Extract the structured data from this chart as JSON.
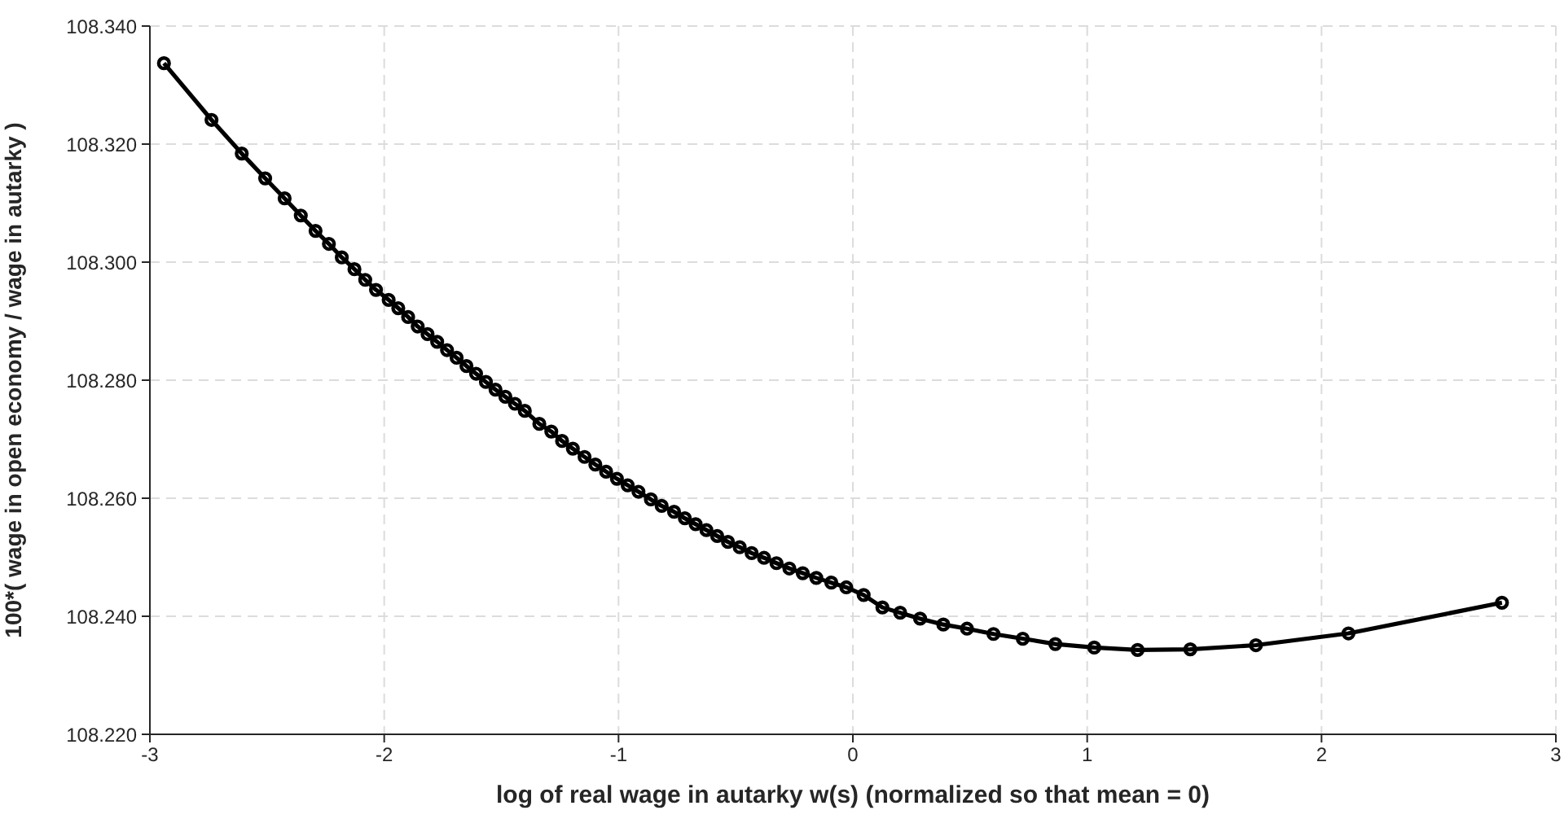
{
  "chart_data": {
    "type": "line",
    "xlabel": "log of real wage in autarky w(s) (normalized so that mean = 0)",
    "ylabel": "100*( wage in open economy / wage in autarky )",
    "xlim": [
      -3,
      3
    ],
    "xticks": [
      -3,
      -2,
      -1,
      0,
      1,
      2,
      3
    ],
    "ylim": [
      108.22,
      108.34
    ],
    "yticks": [
      {
        "value": 108.22,
        "label": "108.220"
      },
      {
        "value": 108.24,
        "label": "108.240"
      },
      {
        "value": 108.26,
        "label": "108.260"
      },
      {
        "value": 108.28,
        "label": "108.280"
      },
      {
        "value": 108.3,
        "label": "108.300"
      },
      {
        "value": 108.32,
        "label": "108.320"
      },
      {
        "value": 108.34,
        "label": "108.340"
      }
    ],
    "grid": true,
    "marker": "circle",
    "line_style": "solid",
    "series": [
      {
        "color": "#000000",
        "x": [
          -2.94,
          -2.737,
          -2.608,
          -2.508,
          -2.425,
          -2.356,
          -2.293,
          -2.236,
          -2.181,
          -2.127,
          -2.081,
          -2.035,
          -1.981,
          -1.94,
          -1.898,
          -1.857,
          -1.815,
          -1.774,
          -1.732,
          -1.691,
          -1.649,
          -1.608,
          -1.566,
          -1.525,
          -1.483,
          -1.442,
          -1.4,
          -1.338,
          -1.287,
          -1.241,
          -1.195,
          -1.145,
          -1.099,
          -1.053,
          -1.007,
          -0.961,
          -0.915,
          -0.862,
          -0.816,
          -0.763,
          -0.717,
          -0.671,
          -0.625,
          -0.579,
          -0.533,
          -0.483,
          -0.432,
          -0.379,
          -0.326,
          -0.271,
          -0.214,
          -0.156,
          -0.092,
          -0.028,
          0.046,
          0.126,
          0.202,
          0.287,
          0.386,
          0.487,
          0.6,
          0.725,
          0.864,
          1.03,
          1.215,
          1.44,
          1.72,
          2.115,
          2.77
        ],
        "values": [
          108.3337,
          108.3241,
          108.3184,
          108.3142,
          108.3108,
          108.3079,
          108.3053,
          108.3031,
          108.3008,
          108.2988,
          108.297,
          108.2953,
          108.2936,
          108.2922,
          108.2907,
          108.2891,
          108.2878,
          108.2865,
          108.2851,
          108.2838,
          108.2824,
          108.2811,
          108.2797,
          108.2784,
          108.2772,
          108.276,
          108.2748,
          108.2726,
          108.2713,
          108.2697,
          108.2684,
          108.267,
          108.2657,
          108.2645,
          108.2633,
          108.2622,
          108.2611,
          108.2598,
          108.2587,
          108.2577,
          108.2566,
          108.2556,
          108.2546,
          108.2536,
          108.2526,
          108.2517,
          108.2507,
          108.2499,
          108.249,
          108.2481,
          108.2473,
          108.2465,
          108.2457,
          108.2449,
          108.2436,
          108.2415,
          108.2406,
          108.2396,
          108.2386,
          108.2379,
          108.237,
          108.2362,
          108.2353,
          108.2347,
          108.2343,
          108.2344,
          108.2351,
          108.2371,
          108.2423
        ]
      }
    ]
  }
}
